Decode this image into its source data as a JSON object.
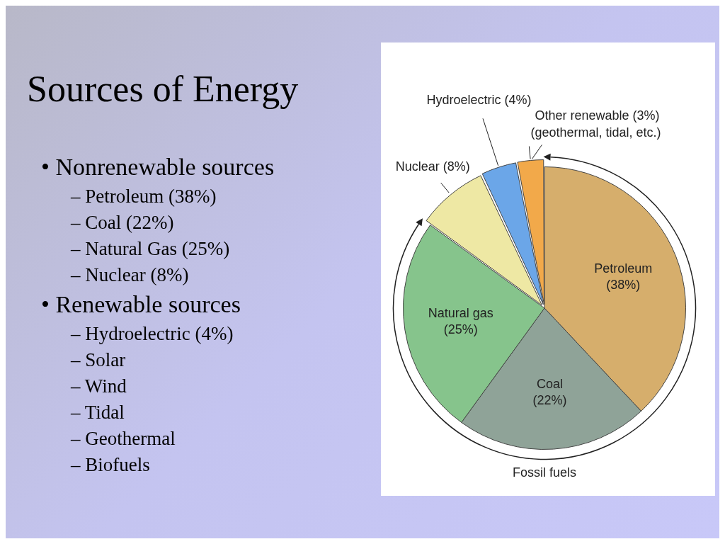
{
  "chart_data": {
    "type": "pie",
    "title": "Sources of Energy",
    "categories": [
      "Petroleum",
      "Coal",
      "Natural gas",
      "Nuclear",
      "Hydroelectric",
      "Other renewable"
    ],
    "values": [
      38,
      22,
      25,
      8,
      4,
      3
    ],
    "value_labels": [
      "(38%)",
      "(22%)",
      "(25%)",
      "(8%)",
      "(4%)",
      "(3%)"
    ],
    "colors": [
      "#d6ae6c",
      "#8fa398",
      "#86c48c",
      "#eee8a4",
      "#6ba6e8",
      "#f2a94a"
    ],
    "legend": false,
    "annotations": [
      "(geothermal, tidal, etc.)",
      "Fossil fuels",
      "• Nonrenewable sources",
      "– Petroleum (38%)",
      "– Coal (22%)",
      "– Natural Gas (25%)",
      "– Nuclear (8%)",
      "• Renewable sources",
      "– Hydroelectric (4%)",
      "– Solar",
      "– Wind",
      "– Tidal",
      "– Geothermal",
      "– Biofuels"
    ]
  }
}
